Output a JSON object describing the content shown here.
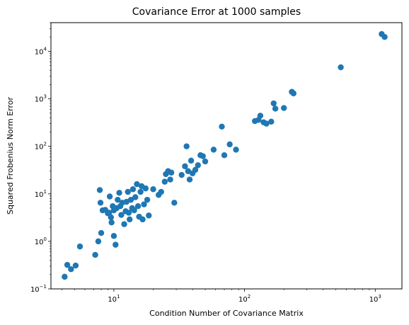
{
  "chart_data": {
    "type": "scatter",
    "title": "Covariance Error at 1000 samples",
    "xlabel": "Condition Number of Covariance Matrix",
    "ylabel": "Squared Frobenius Norm Error",
    "xscale": "log",
    "yscale": "log",
    "xlim": [
      3.3,
      1600
    ],
    "ylim": [
      0.1,
      40000
    ],
    "x_ticks": [
      {
        "value": 10,
        "base": "10",
        "exp": "1"
      },
      {
        "value": 100,
        "base": "10",
        "exp": "2"
      },
      {
        "value": 1000,
        "base": "10",
        "exp": "3"
      }
    ],
    "y_ticks": [
      {
        "value": 0.1,
        "base": "10",
        "exp": "−1"
      },
      {
        "value": 1,
        "base": "10",
        "exp": "0"
      },
      {
        "value": 10,
        "base": "10",
        "exp": "1"
      },
      {
        "value": 100,
        "base": "10",
        "exp": "2"
      },
      {
        "value": 1000,
        "base": "10",
        "exp": "3"
      },
      {
        "value": 10000,
        "base": "10",
        "exp": "4"
      }
    ],
    "grid": false,
    "marker_color": "#1f77b4",
    "points": [
      {
        "x": 4.2,
        "y": 0.18
      },
      {
        "x": 4.4,
        "y": 0.32
      },
      {
        "x": 4.7,
        "y": 0.26
      },
      {
        "x": 5.1,
        "y": 0.31
      },
      {
        "x": 5.5,
        "y": 0.78
      },
      {
        "x": 7.2,
        "y": 0.52
      },
      {
        "x": 7.6,
        "y": 1.0
      },
      {
        "x": 8.0,
        "y": 1.5
      },
      {
        "x": 7.8,
        "y": 12.0
      },
      {
        "x": 7.9,
        "y": 6.5
      },
      {
        "x": 8.2,
        "y": 4.5
      },
      {
        "x": 8.6,
        "y": 4.6
      },
      {
        "x": 9.0,
        "y": 3.9
      },
      {
        "x": 9.2,
        "y": 4.0
      },
      {
        "x": 9.3,
        "y": 8.8
      },
      {
        "x": 9.5,
        "y": 3.2
      },
      {
        "x": 9.6,
        "y": 2.5
      },
      {
        "x": 9.8,
        "y": 5.5
      },
      {
        "x": 10.0,
        "y": 4.5
      },
      {
        "x": 10.0,
        "y": 1.3
      },
      {
        "x": 10.3,
        "y": 0.85
      },
      {
        "x": 10.5,
        "y": 5.0
      },
      {
        "x": 10.7,
        "y": 7.5
      },
      {
        "x": 11.0,
        "y": 10.5
      },
      {
        "x": 11.2,
        "y": 5.5
      },
      {
        "x": 11.4,
        "y": 3.6
      },
      {
        "x": 11.6,
        "y": 6.5
      },
      {
        "x": 12.0,
        "y": 2.3
      },
      {
        "x": 12.3,
        "y": 4.3
      },
      {
        "x": 12.5,
        "y": 6.8
      },
      {
        "x": 12.8,
        "y": 11.0
      },
      {
        "x": 13.0,
        "y": 4.0
      },
      {
        "x": 13.2,
        "y": 2.9
      },
      {
        "x": 13.5,
        "y": 7.5
      },
      {
        "x": 13.8,
        "y": 5.0
      },
      {
        "x": 14.0,
        "y": 12.5
      },
      {
        "x": 14.3,
        "y": 4.5
      },
      {
        "x": 14.6,
        "y": 8.5
      },
      {
        "x": 15.0,
        "y": 16.0
      },
      {
        "x": 15.3,
        "y": 5.5
      },
      {
        "x": 15.6,
        "y": 3.3
      },
      {
        "x": 16.0,
        "y": 11.0
      },
      {
        "x": 16.3,
        "y": 14.5
      },
      {
        "x": 16.6,
        "y": 2.9
      },
      {
        "x": 17.0,
        "y": 6.0
      },
      {
        "x": 17.5,
        "y": 13.0
      },
      {
        "x": 18.0,
        "y": 7.5
      },
      {
        "x": 18.5,
        "y": 3.5
      },
      {
        "x": 20.0,
        "y": 12.5
      },
      {
        "x": 22.0,
        "y": 9.5
      },
      {
        "x": 23.0,
        "y": 11.0
      },
      {
        "x": 24.5,
        "y": 18.0
      },
      {
        "x": 25.0,
        "y": 26.0
      },
      {
        "x": 26.0,
        "y": 30.0
      },
      {
        "x": 27.0,
        "y": 20.0
      },
      {
        "x": 27.5,
        "y": 28.0
      },
      {
        "x": 29.0,
        "y": 6.5
      },
      {
        "x": 33.0,
        "y": 25.0
      },
      {
        "x": 35.0,
        "y": 38.0
      },
      {
        "x": 36.0,
        "y": 100.0
      },
      {
        "x": 37.0,
        "y": 30.0
      },
      {
        "x": 38.0,
        "y": 20.0
      },
      {
        "x": 39.0,
        "y": 50.0
      },
      {
        "x": 40.0,
        "y": 27.0
      },
      {
        "x": 42.0,
        "y": 32.0
      },
      {
        "x": 44.0,
        "y": 40.0
      },
      {
        "x": 46.0,
        "y": 65.0
      },
      {
        "x": 48.0,
        "y": 62.0
      },
      {
        "x": 50.0,
        "y": 48.0
      },
      {
        "x": 58.0,
        "y": 85.0
      },
      {
        "x": 67.0,
        "y": 260.0
      },
      {
        "x": 70.0,
        "y": 65.0
      },
      {
        "x": 77.0,
        "y": 110.0
      },
      {
        "x": 86.0,
        "y": 85.0
      },
      {
        "x": 120.0,
        "y": 340.0
      },
      {
        "x": 128.0,
        "y": 360.0
      },
      {
        "x": 132.0,
        "y": 440.0
      },
      {
        "x": 140.0,
        "y": 320.0
      },
      {
        "x": 147.0,
        "y": 300.0
      },
      {
        "x": 160.0,
        "y": 330.0
      },
      {
        "x": 167.0,
        "y": 800.0
      },
      {
        "x": 172.0,
        "y": 620.0
      },
      {
        "x": 200.0,
        "y": 640.0
      },
      {
        "x": 230.0,
        "y": 1400.0
      },
      {
        "x": 237.0,
        "y": 1300.0
      },
      {
        "x": 545.0,
        "y": 4600.0
      },
      {
        "x": 1120.0,
        "y": 23000.0
      },
      {
        "x": 1180.0,
        "y": 20000.0
      }
    ]
  }
}
